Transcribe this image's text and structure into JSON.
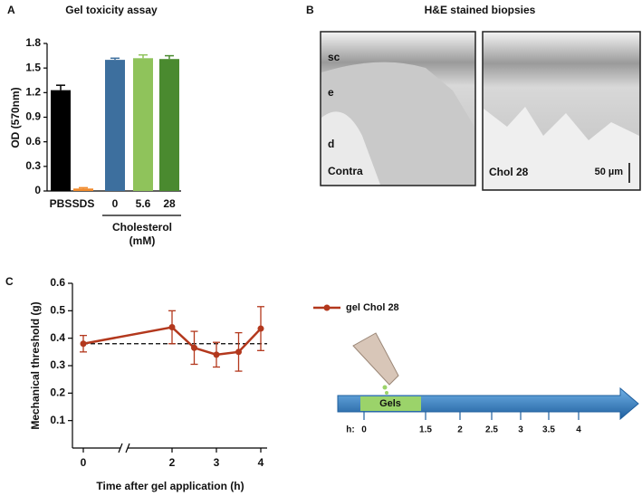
{
  "chart_data": [
    {
      "type": "bar",
      "panel": "A",
      "title": "Gel toxicity assay",
      "ylabel": "OD (570nm)",
      "categories": [
        "PBS",
        "SDS",
        "0",
        "5.6",
        "28"
      ],
      "values": [
        1.23,
        0.03,
        1.6,
        1.62,
        1.61
      ],
      "errors": [
        0.06,
        0.01,
        0.02,
        0.04,
        0.04
      ],
      "colors": [
        "#000000",
        "#f08a2c",
        "#3d6f9e",
        "#8fc35b",
        "#4a8a2f"
      ],
      "group_label": [
        "Cholesterol",
        "(mM)"
      ],
      "ylim": [
        0,
        1.8
      ],
      "yticks": [
        0,
        0.3,
        0.6,
        0.9,
        1.2,
        1.5,
        1.8
      ]
    },
    {
      "type": "image",
      "panel": "B",
      "title": "H&E stained biopsies",
      "images": [
        {
          "labels": [
            "sc",
            "e",
            "d"
          ],
          "caption": "Contra"
        },
        {
          "caption": "Chol 28",
          "scale_bar": "50 µm"
        }
      ]
    },
    {
      "type": "line",
      "panel": "C",
      "xlabel": "Time after gel application (h)",
      "ylabel": "Mechanical threshold (g)",
      "x": [
        0,
        2,
        2.5,
        3,
        3.5,
        4
      ],
      "series": [
        {
          "name": "gel Chol 28",
          "color": "#b3381d",
          "values": [
            0.38,
            0.44,
            0.365,
            0.34,
            0.35,
            0.435
          ],
          "errors": [
            0.03,
            0.06,
            0.06,
            0.045,
            0.07,
            0.08
          ]
        }
      ],
      "reference_line": 0.38,
      "xlim": [
        0,
        4
      ],
      "xticks": [
        0,
        2,
        3,
        4
      ],
      "ylim": [
        0,
        0.6
      ],
      "yticks": [
        0.1,
        0.2,
        0.3,
        0.4,
        0.5,
        0.6
      ],
      "inset": {
        "label": "Gels",
        "prefix": "h:",
        "ticks": [
          0,
          1.5,
          2,
          2.5,
          3,
          3.5,
          4
        ]
      }
    }
  ]
}
